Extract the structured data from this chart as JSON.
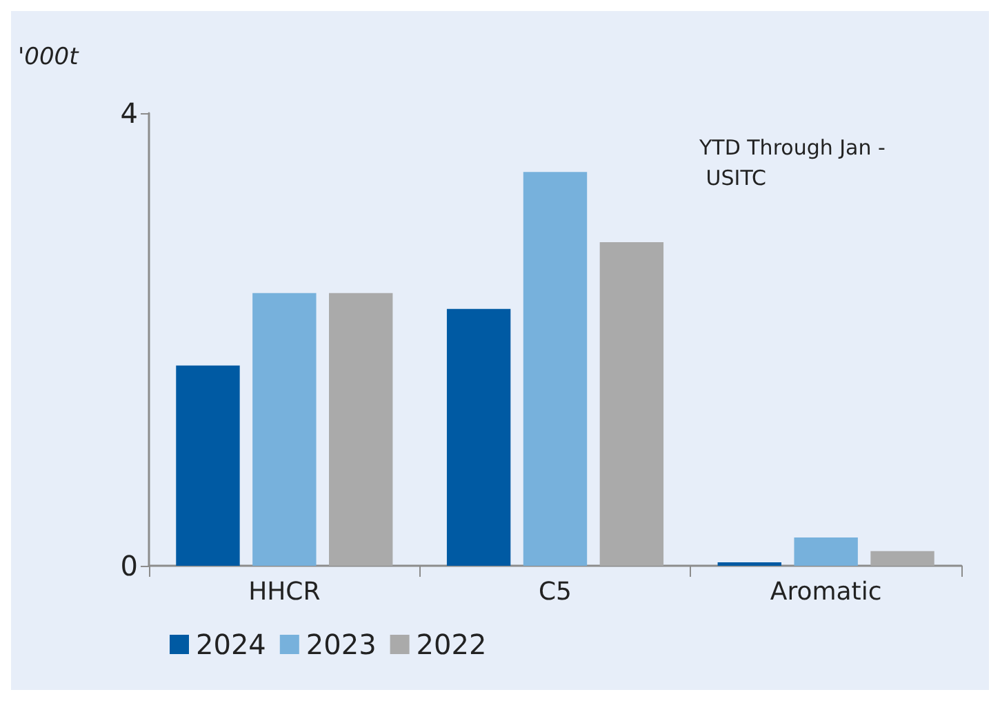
{
  "chart_data": {
    "type": "bar",
    "ylabel": "'000t",
    "categories": [
      "HHCR",
      "C5",
      "Aromatic"
    ],
    "series": [
      {
        "name": "2024",
        "color": "#005aa3",
        "values": [
          1.77,
          2.27,
          0.03
        ]
      },
      {
        "name": "2023",
        "color": "#77b1dc",
        "values": [
          2.41,
          3.48,
          0.25
        ]
      },
      {
        "name": "2022",
        "color": "#aaaaaa",
        "values": [
          2.41,
          2.86,
          0.13
        ]
      }
    ],
    "ylim": [
      0,
      4
    ],
    "yticks": [
      0,
      4
    ],
    "grid": false,
    "legend": "bottom left",
    "annotations": [
      "YTD Through Jan - USITC"
    ]
  }
}
